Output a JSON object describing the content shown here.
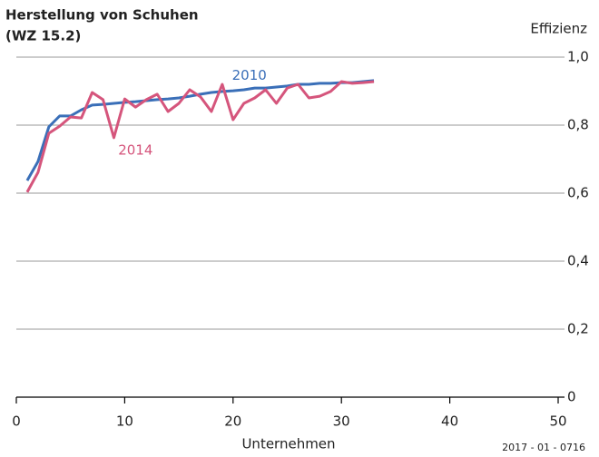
{
  "chart_data": {
    "type": "line",
    "title": "Herstellung von Schuhen",
    "subtitle": "(WZ 15.2)",
    "y_label": "Effizienz",
    "x_label": "Unternehmen",
    "source": "2017 - 01 - 0716",
    "x": [
      1,
      2,
      3,
      4,
      5,
      6,
      7,
      8,
      9,
      10,
      11,
      12,
      13,
      14,
      15,
      16,
      17,
      18,
      19,
      20,
      21,
      22,
      23,
      24,
      25,
      26,
      27,
      28,
      29,
      30,
      31,
      32,
      33
    ],
    "series": [
      {
        "name": "2010",
        "color": "#3a6fb8",
        "values": [
          0.637,
          0.693,
          0.795,
          0.827,
          0.827,
          0.845,
          0.859,
          0.861,
          0.864,
          0.867,
          0.869,
          0.872,
          0.875,
          0.877,
          0.88,
          0.885,
          0.891,
          0.896,
          0.899,
          0.901,
          0.904,
          0.909,
          0.909,
          0.912,
          0.915,
          0.92,
          0.92,
          0.923,
          0.923,
          0.925,
          0.925,
          0.928,
          0.931
        ]
      },
      {
        "name": "2014",
        "color": "#d5557c",
        "values": [
          0.603,
          0.661,
          0.776,
          0.797,
          0.824,
          0.821,
          0.896,
          0.875,
          0.763,
          0.877,
          0.853,
          0.875,
          0.891,
          0.84,
          0.864,
          0.904,
          0.883,
          0.84,
          0.92,
          0.816,
          0.864,
          0.88,
          0.904,
          0.864,
          0.909,
          0.92,
          0.88,
          0.885,
          0.899,
          0.928,
          0.923,
          0.925,
          0.928
        ]
      }
    ],
    "xlim": [
      0,
      50
    ],
    "xticks": [
      0,
      10,
      20,
      30,
      40,
      50
    ],
    "ylim": [
      0,
      1
    ],
    "yticks": [
      0,
      {
        "value": 0.2,
        "label": "0,2"
      },
      {
        "value": 0.4,
        "label": "0,4"
      },
      {
        "value": 0.6,
        "label": "0,6"
      },
      {
        "value": 0.8,
        "label": "0,8"
      },
      {
        "value": 1,
        "label": "1,0"
      }
    ],
    "grid": true
  }
}
